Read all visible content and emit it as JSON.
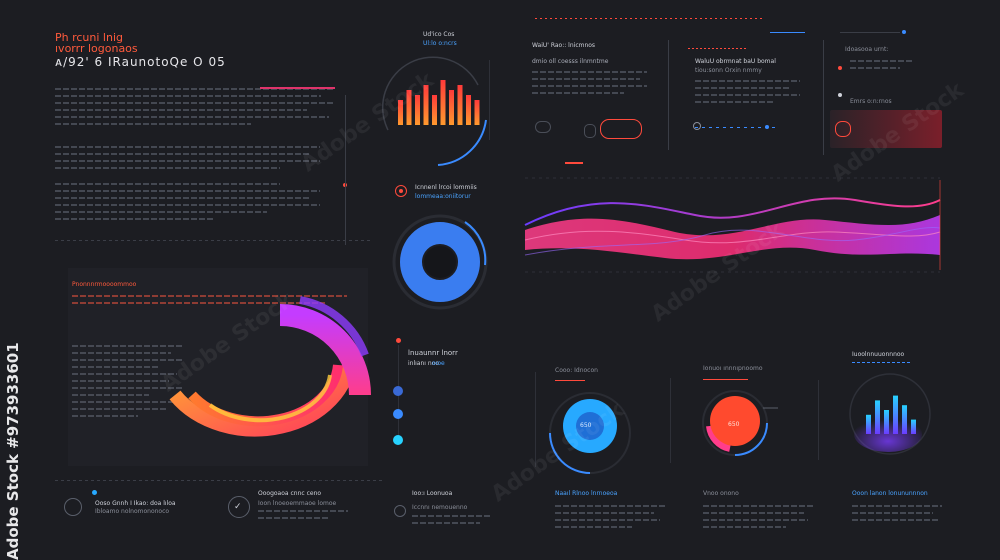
{
  "header": {
    "title_line1": "Ph rcuni lnig",
    "title_line2": "ıvorrr logonaos",
    "subtitle": "ᴀ/92' 6 IRaunotoQe O 05"
  },
  "top_center": {
    "label": "Ud'ico Cos",
    "sub": "Ul:lo o:ncrs"
  },
  "panel_a": {
    "title": "WaiU' Rao:: lnicmnos",
    "sub": "dmio oll coesss ilnmntme"
  },
  "panel_b": {
    "title": "WaluU obrmnat baU bomal",
    "sub": "tiou:sonn Orxin nmmy"
  },
  "panel_c": {
    "item1": "Idoasooa urnt:",
    "item2": "Emrs o:n:rnos"
  },
  "mid_label": {
    "title": "Icnnenl lrcoi lommiis",
    "sub": "lommeaa:oniitorur"
  },
  "left_panel": {
    "red_title": "Pnonnnrmoooommoo"
  },
  "center_list": {
    "title": "lnuaunnr lnorr",
    "sub": "inlıanı noo",
    "blue": "oıoe"
  },
  "bottom_left": {
    "item1_title": "Ooso Gnnh I Ikao: doa lıloa",
    "item1_sub": "Ibloamo nolnomononoco",
    "item2_title": "Ooogoaoa cnnc ceno",
    "item2_sub": "Ioon lnoeoemmaoe lomoe"
  },
  "bottom_center": {
    "title": "Ioo:ı Loonuoa",
    "sub": "Iccnnı nemouenno"
  },
  "gauges": [
    {
      "label": "Cooo: Idnocon",
      "value": "650",
      "foot": "Naaıl Rlnoo lnrnoeoa"
    },
    {
      "label": "Ionuoı ınnnıpnoomo",
      "value": "650",
      "foot": "Vnoo onono"
    },
    {
      "label": "Iuoolnnuuonnnoo",
      "foot": "Ooon lanon lonununnnon"
    }
  ],
  "watermark": {
    "brand": "Adobe Stock",
    "id": "#973933601"
  },
  "chart_data": [
    {
      "type": "bar",
      "values": [
        5,
        7,
        6,
        8,
        6,
        9,
        7,
        8,
        6,
        5
      ]
    },
    {
      "type": "bar",
      "values": [
        4,
        7,
        5,
        8,
        6,
        3
      ]
    }
  ],
  "colors": {
    "accent_red": "#ff4a3c",
    "accent_pink": "#ff3d8b",
    "accent_blue": "#3a8bff",
    "accent_cyan": "#27d2ff",
    "bg": "#1c1d22"
  }
}
